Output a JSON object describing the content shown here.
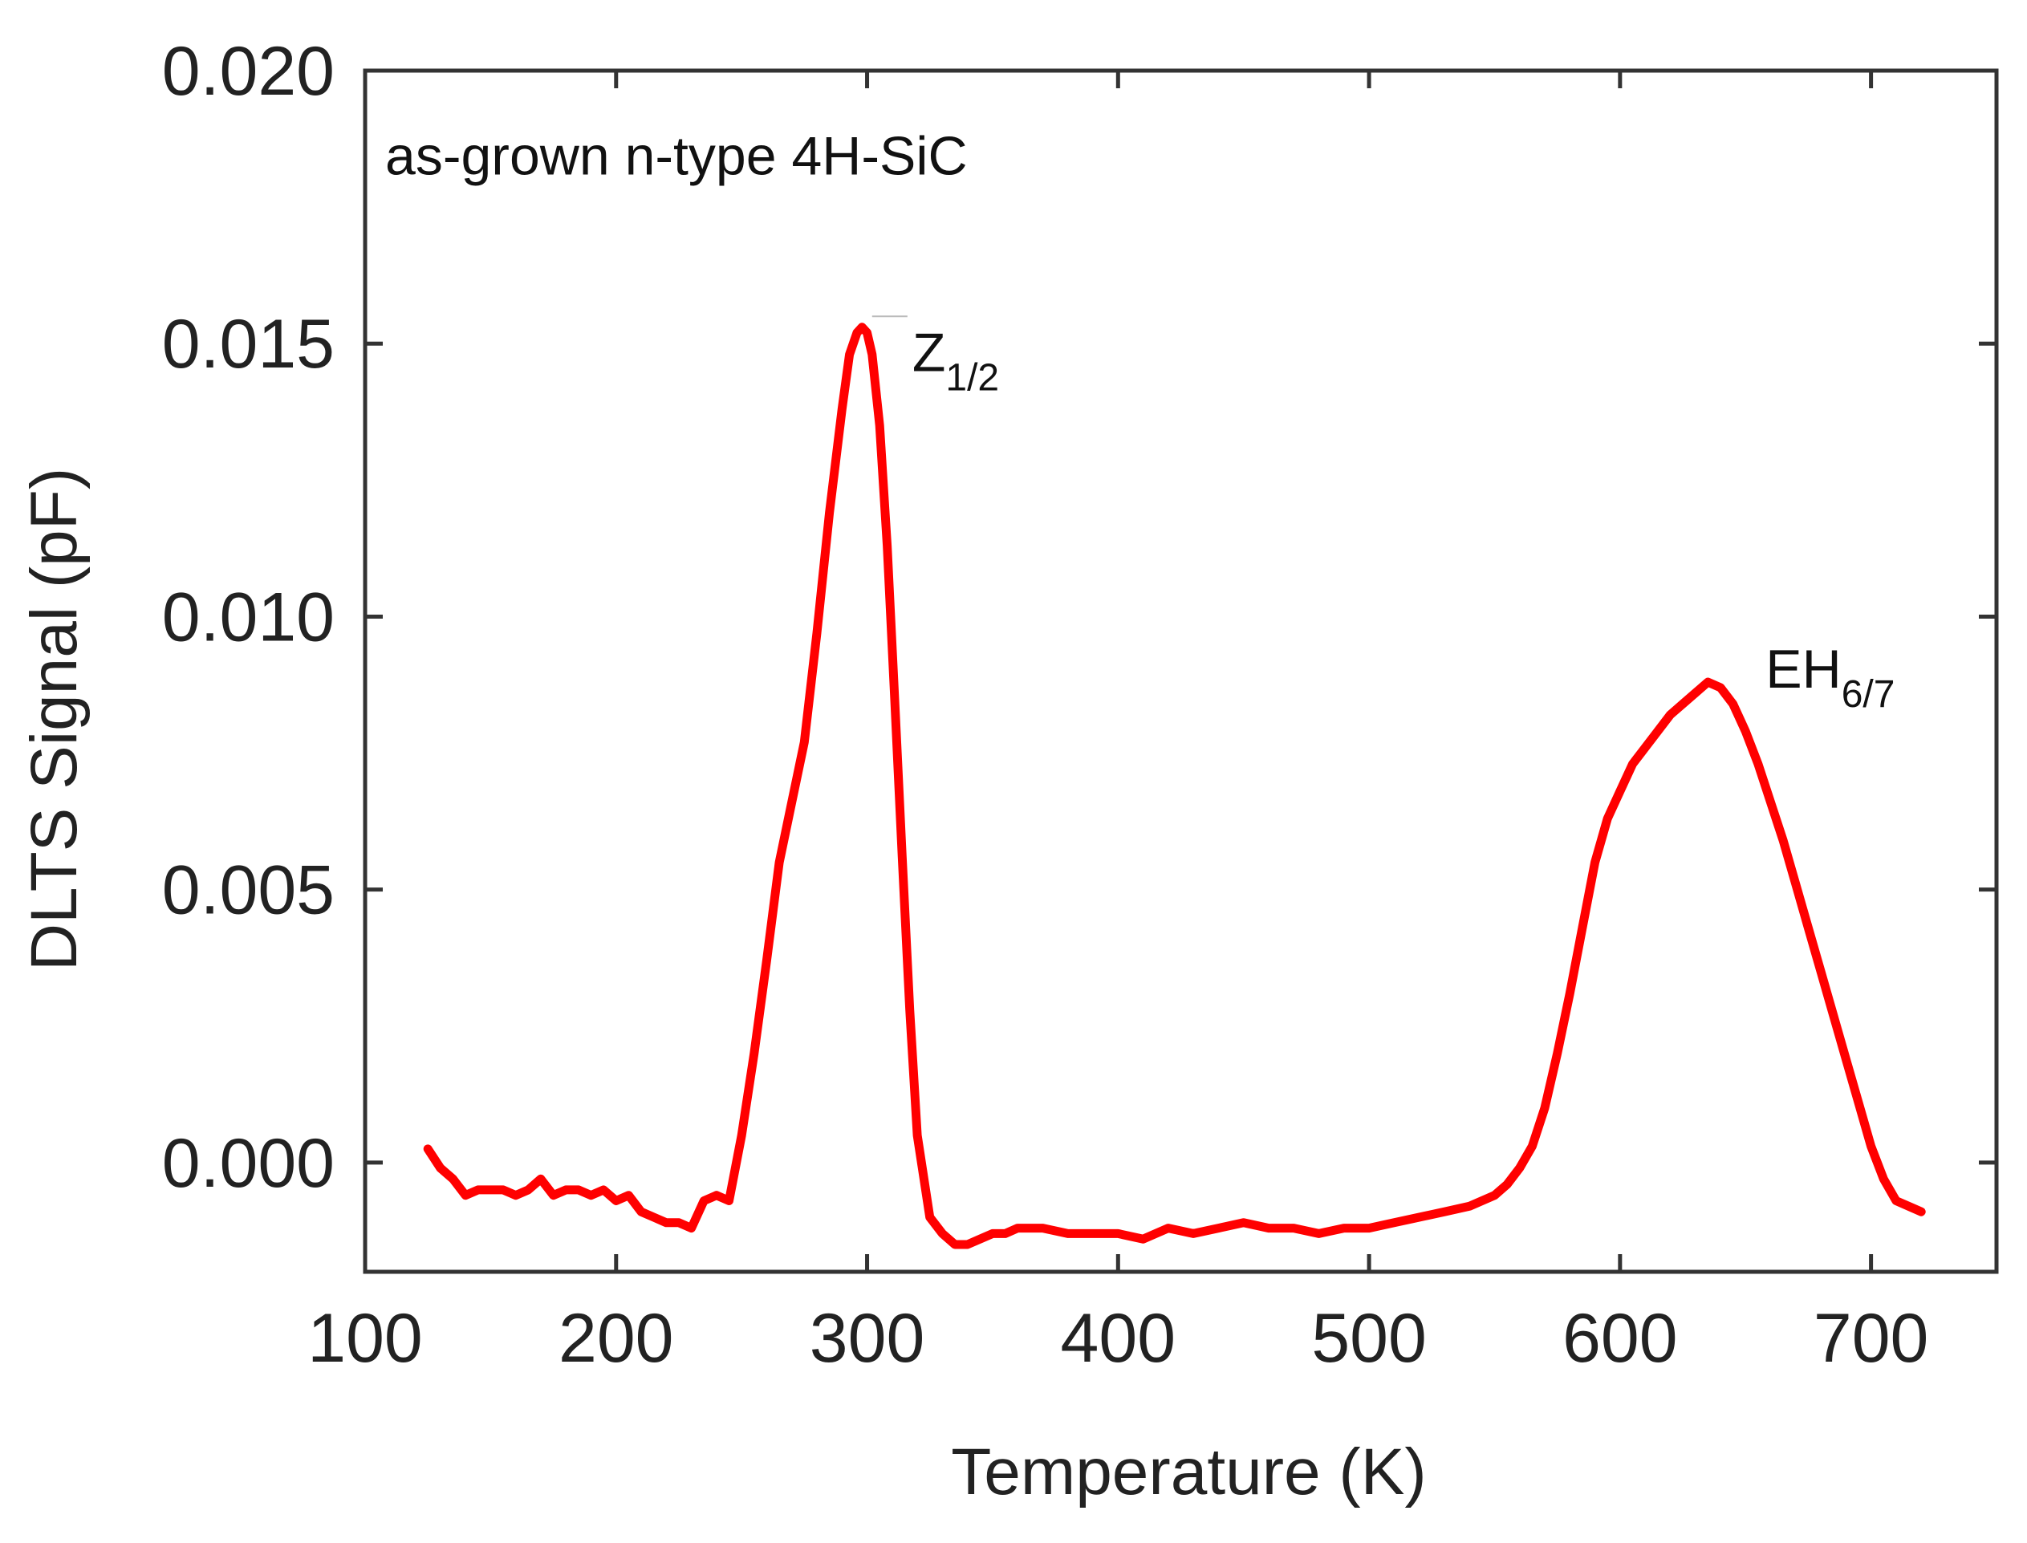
{
  "colors": {
    "series": "#ff0000",
    "axis": "#333333",
    "text": "#222222"
  },
  "chart_data": {
    "type": "line",
    "title": "",
    "xlabel": "Temperature (K)",
    "ylabel": "DLTS Signal (pF)",
    "xlim": [
      100,
      750
    ],
    "ylim": [
      -0.002,
      0.02
    ],
    "xticks": [
      100,
      200,
      300,
      400,
      500,
      600,
      700
    ],
    "yticks": [
      0.0,
      0.005,
      0.01,
      0.015,
      0.02
    ],
    "xtick_labels": [
      "100",
      "200",
      "300",
      "400",
      "500",
      "600",
      "700"
    ],
    "ytick_labels": [
      "0.000",
      "0.005",
      "0.010",
      "0.015",
      "0.020"
    ],
    "grid": false,
    "annotations": [
      {
        "text": "as-grown n-type 4H-SiC",
        "x": 108,
        "y": 0.0181
      },
      {
        "text": "Z",
        "sub": "1/2",
        "x": 318,
        "y": 0.0145
      },
      {
        "text": "EH",
        "sub": "6/7",
        "x": 658,
        "y": 0.0087
      }
    ],
    "series": [
      {
        "name": "as-grown n-type 4H-SiC",
        "x": [
          125,
          130,
          135,
          140,
          145,
          150,
          155,
          160,
          165,
          170,
          175,
          180,
          185,
          190,
          195,
          200,
          205,
          210,
          215,
          220,
          225,
          230,
          235,
          240,
          245,
          250,
          255,
          260,
          265,
          270,
          275,
          280,
          285,
          290,
          293,
          296,
          298,
          300,
          302,
          305,
          308,
          311,
          314,
          317,
          320,
          325,
          330,
          335,
          340,
          345,
          350,
          355,
          360,
          370,
          380,
          390,
          400,
          410,
          420,
          430,
          440,
          450,
          460,
          470,
          480,
          490,
          500,
          510,
          520,
          530,
          540,
          550,
          555,
          560,
          565,
          570,
          575,
          580,
          585,
          590,
          595,
          600,
          605,
          610,
          615,
          620,
          625,
          630,
          635,
          640,
          645,
          650,
          655,
          660,
          665,
          670,
          675,
          680,
          685,
          690,
          695,
          700,
          705,
          710,
          715,
          720
        ],
        "y": [
          0.00025,
          -0.0001,
          -0.0003,
          -0.0006,
          -0.0005,
          -0.0005,
          -0.0005,
          -0.0006,
          -0.0005,
          -0.0003,
          -0.0006,
          -0.0005,
          -0.0005,
          -0.0006,
          -0.0005,
          -0.0007,
          -0.0006,
          -0.0009,
          -0.001,
          -0.0011,
          -0.0011,
          -0.0012,
          -0.0007,
          -0.0006,
          -0.0007,
          0.0005,
          0.002,
          0.0037,
          0.0055,
          0.0066,
          0.0077,
          0.0097,
          0.0119,
          0.0138,
          0.0148,
          0.0152,
          0.0153,
          0.0152,
          0.0148,
          0.0135,
          0.0113,
          0.0085,
          0.0056,
          0.0028,
          0.0005,
          -0.001,
          -0.0013,
          -0.0015,
          -0.0015,
          -0.0014,
          -0.0013,
          -0.0013,
          -0.0012,
          -0.0012,
          -0.0013,
          -0.0013,
          -0.0013,
          -0.0014,
          -0.0012,
          -0.0013,
          -0.0012,
          -0.0011,
          -0.0012,
          -0.0012,
          -0.0013,
          -0.0012,
          -0.0012,
          -0.0011,
          -0.001,
          -0.0009,
          -0.0008,
          -0.0006,
          -0.0004,
          -0.0001,
          0.0003,
          0.001,
          0.002,
          0.0031,
          0.0043,
          0.0055,
          0.0063,
          0.0068,
          0.0073,
          0.0076,
          0.0079,
          0.0082,
          0.0084,
          0.0086,
          0.0088,
          0.0087,
          0.0084,
          0.0079,
          0.0073,
          0.0066,
          0.0059,
          0.0051,
          0.0043,
          0.0035,
          0.0027,
          0.0019,
          0.0011,
          0.0003,
          -0.0003,
          -0.0007,
          -0.0008,
          -0.0009
        ]
      }
    ]
  }
}
